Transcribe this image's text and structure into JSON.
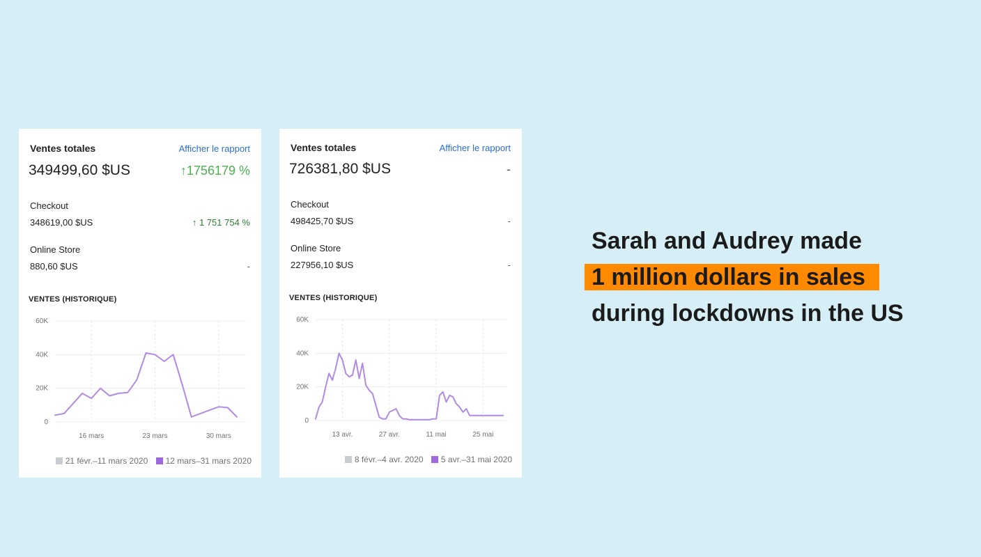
{
  "cards": [
    {
      "title": "Ventes totales",
      "link": "Afficher le rapport",
      "total": "349499,60 $US",
      "total_change": "↑1756179 %",
      "checkout_label": "Checkout",
      "checkout_value": "348619,00 $US",
      "checkout_change": "↑ 1 751 754 %",
      "store_label": "Online Store",
      "store_value": "880,60 $US",
      "store_change": "-",
      "section_label": "VENTES (HISTORIQUE)",
      "legend_prev": "21 févr.–11 mars 2020",
      "legend_cur": "12 mars–31 mars 2020"
    },
    {
      "title": "Ventes totales",
      "link": "Afficher le rapport",
      "total": "726381,80 $US",
      "total_change": "-",
      "checkout_label": "Checkout",
      "checkout_value": "498425,70 $US",
      "checkout_change": "-",
      "store_label": "Online Store",
      "store_value": "227956,10 $US",
      "store_change": "-",
      "section_label": "VENTES (HISTORIQUE)",
      "legend_prev": "8 févr.–4 avr. 2020",
      "legend_cur": "5 avr.–31 mai 2020"
    }
  ],
  "headline": {
    "line1": "Sarah and Audrey made",
    "line2": "1 million dollars in sales",
    "line3": "during lockdowns in the US",
    "highlight_color": "#ff8a00"
  },
  "colors": {
    "series": "#b18ae3",
    "prev_series": "#c9ccd0",
    "link": "#2c6ecb",
    "up": "#4caf50"
  },
  "chart_data": [
    {
      "type": "line",
      "ylim": [
        0,
        60000
      ],
      "yticks": [
        0,
        20000,
        40000,
        60000
      ],
      "ytick_labels": [
        "0",
        "20K",
        "40K",
        "60K"
      ],
      "xlim": [
        0,
        21
      ],
      "xticks": [
        4,
        11,
        18
      ],
      "xtick_labels": [
        "16 mars",
        "23 mars",
        "30 mars"
      ],
      "grid": true,
      "series": [
        {
          "name": "12 mars–31 mars 2020",
          "x": [
            0,
            1,
            2,
            3,
            4,
            5,
            6,
            7,
            8,
            9,
            10,
            11,
            12,
            13,
            14,
            15,
            16,
            17,
            18,
            19,
            20
          ],
          "values": [
            4000,
            5000,
            11000,
            17000,
            14000,
            20000,
            15500,
            17000,
            17500,
            25000,
            41000,
            40000,
            36000,
            40000,
            22000,
            3000,
            5000,
            7000,
            9000,
            8500,
            3000
          ]
        }
      ]
    },
    {
      "type": "line",
      "ylim": [
        0,
        60000
      ],
      "yticks": [
        0,
        20000,
        40000,
        60000
      ],
      "ytick_labels": [
        "0",
        "20K",
        "40K",
        "60K"
      ],
      "xlim": [
        0,
        57
      ],
      "xticks": [
        8,
        22,
        36,
        50
      ],
      "xtick_labels": [
        "13 avr.",
        "27 avr.",
        "11 mai",
        "25 mai"
      ],
      "grid": true,
      "series": [
        {
          "name": "5 avr.–31 mai 2020",
          "x": [
            0,
            1,
            2,
            3,
            4,
            5,
            6,
            7,
            8,
            9,
            10,
            11,
            12,
            13,
            14,
            15,
            16,
            17,
            18,
            19,
            20,
            21,
            22,
            23,
            24,
            25,
            26,
            27,
            28,
            29,
            30,
            31,
            32,
            33,
            34,
            35,
            36,
            37,
            38,
            39,
            40,
            41,
            42,
            43,
            44,
            45,
            46,
            47,
            48,
            49,
            50,
            51,
            52,
            53,
            54,
            55,
            56
          ],
          "values": [
            1000,
            8000,
            11000,
            20000,
            28000,
            24000,
            31000,
            40000,
            36000,
            28000,
            26000,
            27000,
            36000,
            25000,
            34000,
            21000,
            18000,
            16000,
            9000,
            2000,
            1000,
            1000,
            5000,
            6000,
            7000,
            3000,
            1000,
            1000,
            500,
            500,
            500,
            500,
            500,
            500,
            500,
            1000,
            1000,
            15000,
            17000,
            11000,
            15000,
            14000,
            10000,
            8000,
            5000,
            7000,
            3000,
            3000,
            3000,
            3000,
            3000,
            3000,
            3000,
            3000,
            3000,
            3000,
            3000
          ]
        }
      ]
    }
  ]
}
